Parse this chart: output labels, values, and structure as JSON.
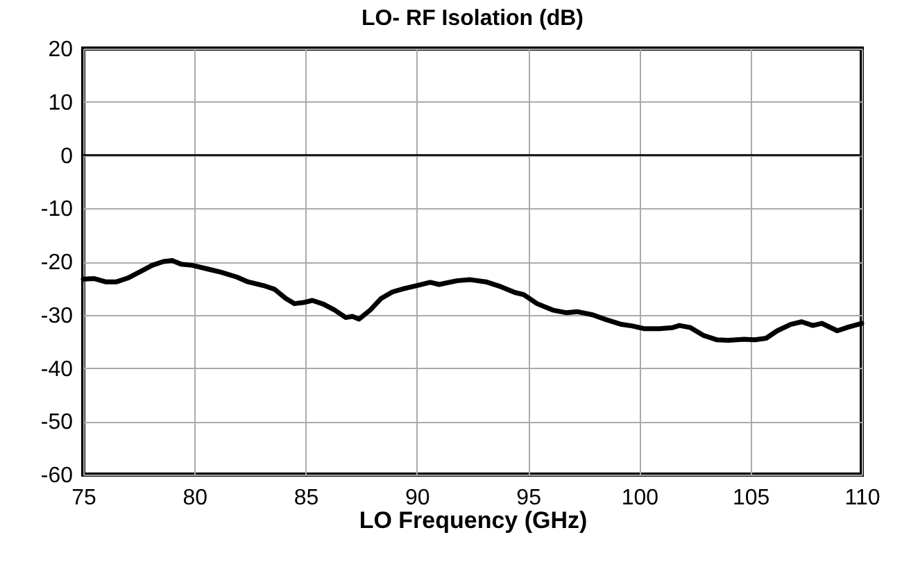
{
  "chart_data": {
    "type": "line",
    "title": "LO- RF Isolation (dB)",
    "xlabel": "LO Frequency (GHz)",
    "xlim": [
      75,
      110
    ],
    "xticks": [
      75,
      80,
      85,
      90,
      95,
      100,
      105,
      110
    ],
    "ylim": [
      -60,
      20
    ],
    "yticks": [
      -60,
      -50,
      -40,
      -30,
      -20,
      -10,
      0,
      10,
      20
    ],
    "grid": true,
    "marker": "none",
    "line_style": "solid",
    "ref_lines": [
      {
        "axis": "y",
        "value": 0,
        "color": "#000000"
      }
    ],
    "series": [
      {
        "color": "#000000",
        "x": [
          75,
          75.5,
          76,
          76.5,
          77,
          77.6,
          78.1,
          78.6,
          79.0,
          79.4,
          79.9,
          80.6,
          81.2,
          81.9,
          82.4,
          83.1,
          83.6,
          84.1,
          84.5,
          84.9,
          85.3,
          85.8,
          86.3,
          86.8,
          87.1,
          87.4,
          87.9,
          88.4,
          88.9,
          89.4,
          90.0,
          90.6,
          91.0,
          91.8,
          92.4,
          93.1,
          93.7,
          94.4,
          94.8,
          95.4,
          96.1,
          96.7,
          97.2,
          97.9,
          98.5,
          99.2,
          99.7,
          100.2,
          100.9,
          101.5,
          101.8,
          102.3,
          102.9,
          103.5,
          104.0,
          104.7,
          105.2,
          105.7,
          106.2,
          106.8,
          107.3,
          107.8,
          108.2,
          108.9,
          109.4,
          110
        ],
        "values": [
          -23.3,
          -23.2,
          -23.8,
          -23.8,
          -23.1,
          -21.8,
          -20.7,
          -20.0,
          -19.8,
          -20.5,
          -20.7,
          -21.4,
          -22.0,
          -22.9,
          -23.8,
          -24.5,
          -25.2,
          -26.9,
          -27.9,
          -27.7,
          -27.3,
          -28.0,
          -29.1,
          -30.5,
          -30.3,
          -30.8,
          -29.1,
          -26.9,
          -25.7,
          -25.1,
          -24.5,
          -23.9,
          -24.3,
          -23.6,
          -23.4,
          -23.8,
          -24.6,
          -25.8,
          -26.2,
          -27.9,
          -29.1,
          -29.6,
          -29.4,
          -30.0,
          -30.9,
          -31.8,
          -32.1,
          -32.6,
          -32.6,
          -32.4,
          -32.0,
          -32.4,
          -33.9,
          -34.7,
          -34.8,
          -34.6,
          -34.7,
          -34.4,
          -33.0,
          -31.8,
          -31.3,
          -32.0,
          -31.6,
          -33.0,
          -32.3,
          -31.6
        ]
      }
    ]
  }
}
